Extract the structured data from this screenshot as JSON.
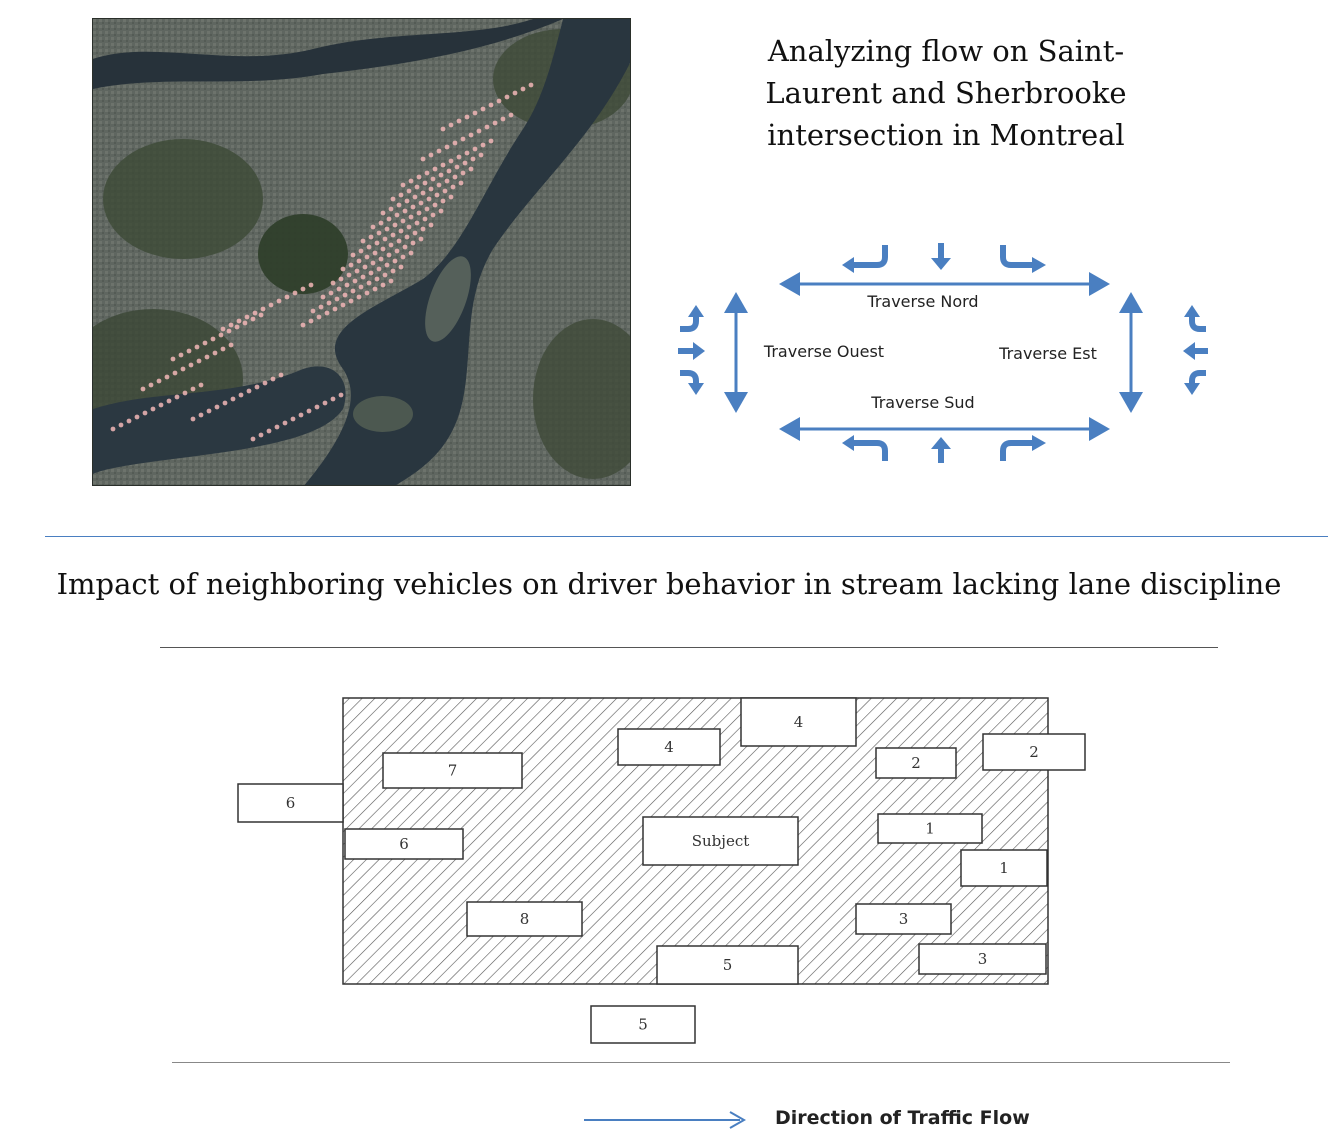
{
  "top_title": "Analyzing flow on Saint-\nLaurent and Sherbrooke\nintersection in Montreal",
  "intersection": {
    "north_label": "Traverse Nord",
    "west_label": "Traverse Ouest",
    "east_label": "Traverse Est",
    "south_label": "Traverse Sud",
    "arrow_color": "#4a7fc1"
  },
  "middle_title": "Impact of neighboring vehicles on driver behavior in stream lacking lane discipline",
  "vehicles": [
    {
      "label": "6"
    },
    {
      "label": "7"
    },
    {
      "label": "6"
    },
    {
      "label": "8"
    },
    {
      "label": "4"
    },
    {
      "label": "4"
    },
    {
      "label": "Subject"
    },
    {
      "label": "5"
    },
    {
      "label": "5"
    },
    {
      "label": "2"
    },
    {
      "label": "2"
    },
    {
      "label": "1"
    },
    {
      "label": "1"
    },
    {
      "label": "3"
    },
    {
      "label": "3"
    }
  ],
  "legend": {
    "label": "Direction of Traffic Flow",
    "arrow_color": "#4a7fc1"
  }
}
